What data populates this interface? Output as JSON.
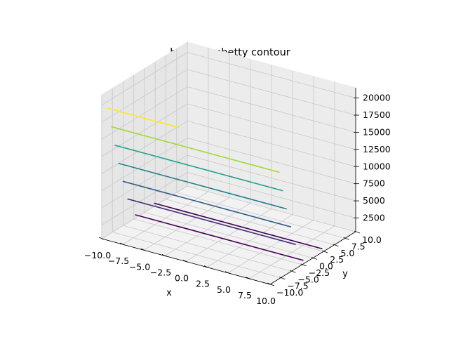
{
  "chart_data": {
    "type": "contour3d",
    "title": "bazaraa_shetty contour",
    "xlabel": "x",
    "ylabel": "y",
    "zlabel": "",
    "xlim": [
      -10,
      10
    ],
    "ylim": [
      -10,
      10
    ],
    "zlim": [
      500,
      21500
    ],
    "xticks": [
      "−10.0",
      "−7.5",
      "−5.0",
      "−2.5",
      "0.0",
      "2.5",
      "5.0",
      "7.5",
      "10.0"
    ],
    "yticks": [
      "−10.0",
      "−7.5",
      "−5.0",
      "−2.5",
      "0.0",
      "2.5",
      "5.0",
      "7.5",
      "10.0"
    ],
    "zticks": [
      "2500",
      "5000",
      "7500",
      "10000",
      "12500",
      "15000",
      "17500",
      "20000"
    ],
    "grid": true,
    "colormap": [
      "#440154",
      "#46327e",
      "#365c8d",
      "#277f8e",
      "#1fa187",
      "#4ac16d",
      "#a0da39",
      "#fde725"
    ],
    "levels": [
      {
        "z": 1000,
        "color": "#440154",
        "segments": [
          {
            "x": [
              -10,
              10
            ],
            "y": [
              2.2,
              2.2
            ]
          },
          {
            "x": [
              -10,
              10
            ],
            "y": [
              -2.2,
              -2.2
            ]
          }
        ]
      },
      {
        "z": 4000,
        "color": "#46327e",
        "segments": [
          {
            "x": [
              -10,
              10
            ],
            "y": [
              -4.0,
              -4.0
            ]
          }
        ]
      },
      {
        "z": 7000,
        "color": "#365c8d",
        "segments": [
          {
            "x": [
              -10,
              10
            ],
            "y": [
              -5.1,
              -5.1
            ]
          }
        ]
      },
      {
        "z": 10000,
        "color": "#277f8e",
        "segments": [
          {
            "x": [
              -10,
              10
            ],
            "y": [
              -6.1,
              -6.1
            ]
          }
        ]
      },
      {
        "z": 13000,
        "color": "#1fa187",
        "segments": [
          {
            "x": [
              -10,
              10
            ],
            "y": [
              -7.0,
              -7.0
            ]
          }
        ]
      },
      {
        "z": 16000,
        "color": "#a0da39",
        "segments": [
          {
            "x": [
              -10,
              10
            ],
            "y": [
              -7.8,
              -7.8
            ]
          }
        ]
      },
      {
        "z": 19000,
        "color": "#fde725",
        "segments": [
          {
            "x": [
              -10,
              -1.5
            ],
            "y": [
              -8.6,
              -8.6
            ]
          }
        ]
      }
    ]
  }
}
